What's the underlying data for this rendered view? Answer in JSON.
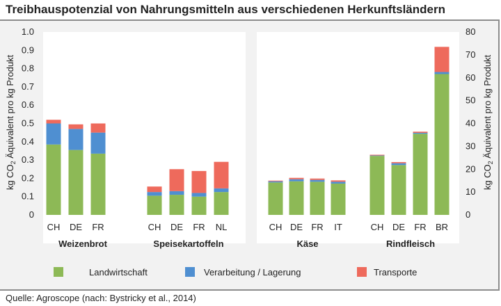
{
  "title": "Treibhauspotenzial von Nahrungsmitteln aus verschiedenen Herkunftsländern",
  "source": "Quelle: Agroscope (nach: Bystricky et al., 2014)",
  "colors": {
    "Landwirtschaft": "#8db956",
    "Verarbeitung / Lagerung": "#4f8fd1",
    "Transporte": "#ee6a5c",
    "panel": "#ffffff",
    "background": "#f2f2f2"
  },
  "chart_data": [
    {
      "type": "bar",
      "stacked": true,
      "axis": "left",
      "ylabel_prefix": "kg CO",
      "ylabel_sub": "2",
      "ylabel_suffix": " Äquivalent pro kg Produkt",
      "ylim": [
        0,
        1.0
      ],
      "yticks": [
        "0",
        "0.1",
        "0.2",
        "0.3",
        "0.4",
        "0.5",
        "0.6",
        "0.7",
        "0.8",
        "0.9",
        "1.0"
      ],
      "groups": [
        {
          "label": "Weizenbrot",
          "categories": [
            "CH",
            "DE",
            "FR"
          ],
          "series": [
            {
              "name": "Landwirtschaft",
              "values": [
                0.385,
                0.355,
                0.335
              ]
            },
            {
              "name": "Verarbeitung / Lagerung",
              "values": [
                0.115,
                0.115,
                0.115
              ]
            },
            {
              "name": "Transporte",
              "values": [
                0.02,
                0.025,
                0.05
              ]
            }
          ]
        },
        {
          "label": "Speisekartoffeln",
          "categories": [
            "CH",
            "DE",
            "FR",
            "NL"
          ],
          "series": [
            {
              "name": "Landwirtschaft",
              "values": [
                0.105,
                0.11,
                0.1,
                0.125
              ]
            },
            {
              "name": "Verarbeitung / Lagerung",
              "values": [
                0.02,
                0.02,
                0.02,
                0.02
              ]
            },
            {
              "name": "Transporte",
              "values": [
                0.03,
                0.12,
                0.12,
                0.145
              ]
            }
          ]
        }
      ]
    },
    {
      "type": "bar",
      "stacked": true,
      "axis": "right",
      "ylabel_prefix": "kg CO",
      "ylabel_sub": "2",
      "ylabel_suffix": " Äquivalent pro kg Produkt",
      "ylim": [
        0,
        80
      ],
      "yticks": [
        "0",
        "10",
        "20",
        "30",
        "40",
        "50",
        "60",
        "70",
        "80"
      ],
      "groups": [
        {
          "label": "Käse",
          "categories": [
            "CH",
            "DE",
            "FR",
            "IT"
          ],
          "series": [
            {
              "name": "Landwirtschaft",
              "values": [
                14.2,
                14.7,
                14.5,
                13.7
              ]
            },
            {
              "name": "Verarbeitung / Lagerung",
              "values": [
                0.5,
                0.9,
                0.8,
                0.8
              ]
            },
            {
              "name": "Transporte",
              "values": [
                0.3,
                0.6,
                0.6,
                0.6
              ]
            }
          ]
        },
        {
          "label": "Rindfleisch",
          "categories": [
            "CH",
            "DE",
            "FR",
            "BR"
          ],
          "series": [
            {
              "name": "Landwirtschaft",
              "values": [
                25.8,
                21.8,
                35.5,
                61.6
              ]
            },
            {
              "name": "Verarbeitung / Lagerung",
              "values": [
                0.2,
                0.8,
                0.4,
                0.9
              ]
            },
            {
              "name": "Transporte",
              "values": [
                0.3,
                0.5,
                0.5,
                11.0
              ]
            }
          ]
        }
      ]
    }
  ],
  "legend": [
    {
      "label": "Landwirtschaft"
    },
    {
      "label": "Verarbeitung / Lagerung"
    },
    {
      "label": "Transporte"
    }
  ]
}
